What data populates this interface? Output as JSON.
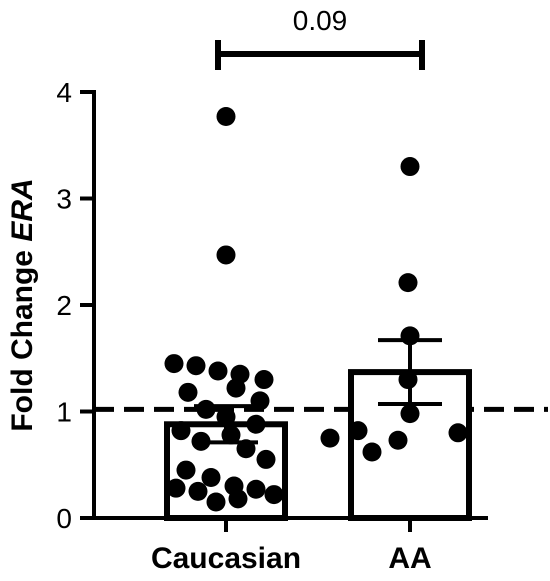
{
  "chart_data": {
    "type": "bar",
    "categories": [
      "Caucasian",
      "AA"
    ],
    "ylabel": {
      "prefix": "Fold Change ",
      "gene": "ERA"
    },
    "ylim": [
      0,
      4
    ],
    "yticks": [
      "0",
      "1",
      "2",
      "3",
      "4"
    ],
    "reference_line": 1.02,
    "bars": [
      {
        "category": "Caucasian",
        "mean": 0.88,
        "sem": 0.17,
        "points": [
          3.77,
          2.47,
          1.45,
          1.43,
          1.38,
          1.35,
          1.3,
          1.22,
          1.18,
          1.1,
          1.02,
          0.95,
          0.88,
          0.82,
          0.78,
          0.72,
          0.65,
          0.55,
          0.45,
          0.38,
          0.3,
          0.28,
          0.27,
          0.25,
          0.22,
          0.18,
          0.15
        ]
      },
      {
        "category": "AA",
        "mean": 1.37,
        "sem": 0.3,
        "points": [
          3.3,
          2.21,
          1.71,
          1.3,
          0.98,
          0.82,
          0.8,
          0.75,
          0.73,
          0.62
        ]
      }
    ],
    "significance": {
      "label": "0.09",
      "from": "Caucasian",
      "to": "AA"
    },
    "grid": false,
    "legend": "none"
  }
}
